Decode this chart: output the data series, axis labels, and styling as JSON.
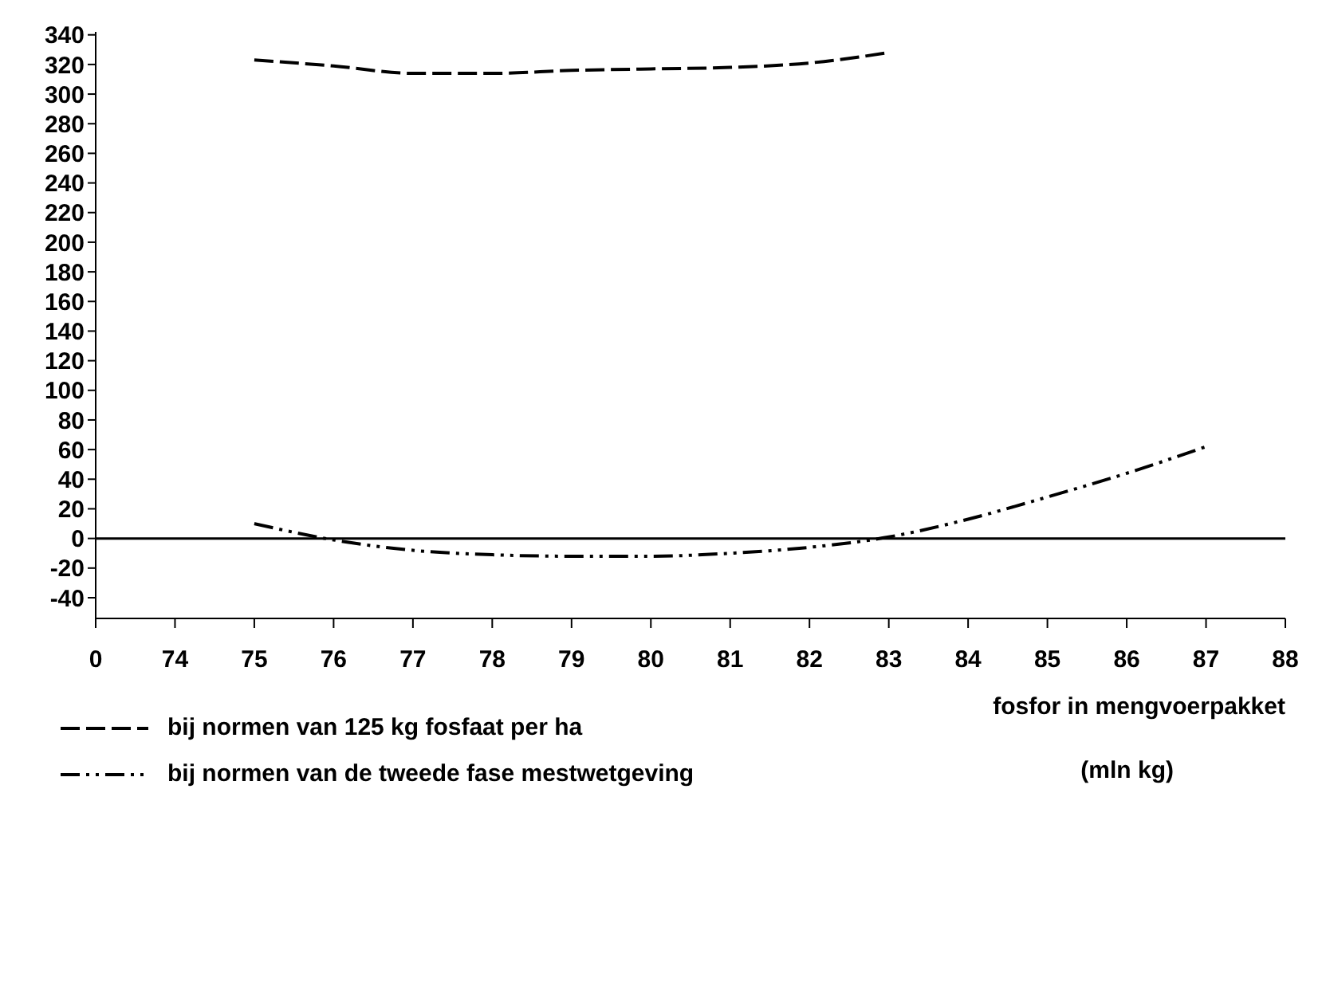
{
  "chart_data": {
    "type": "line",
    "xlabel": "fosfor in mengvoerpakket\n(mln kg)",
    "categories": [
      "0",
      "74",
      "75",
      "76",
      "77",
      "78",
      "79",
      "80",
      "81",
      "82",
      "83",
      "84",
      "85",
      "86",
      "87",
      "88"
    ],
    "series": [
      {
        "name": "bij normen van 125 kg fosfaat per ha",
        "color": "#000000",
        "line_style": "dashed",
        "values": [
          null,
          null,
          323,
          319,
          314,
          314,
          316,
          317,
          318,
          321,
          328,
          null,
          null,
          null,
          null,
          null
        ]
      },
      {
        "name": "bij normen van de tweede fase mestwetgeving",
        "color": "#000000",
        "line_style": "dashdot",
        "values": [
          null,
          null,
          10,
          -1,
          -8,
          -11,
          -12,
          -12,
          -10,
          -6,
          1,
          13,
          28,
          44,
          62,
          null
        ]
      }
    ],
    "ylim": [
      -54,
      342
    ],
    "yticks": [
      -40,
      -20,
      0,
      20,
      40,
      60,
      80,
      100,
      120,
      140,
      160,
      180,
      200,
      220,
      240,
      260,
      280,
      300,
      320,
      340
    ],
    "ref_lines": [
      {
        "axis": "y",
        "value": 0,
        "color": "#000000"
      }
    ],
    "grid": false,
    "legend": "bottom left",
    "marker": "none"
  }
}
